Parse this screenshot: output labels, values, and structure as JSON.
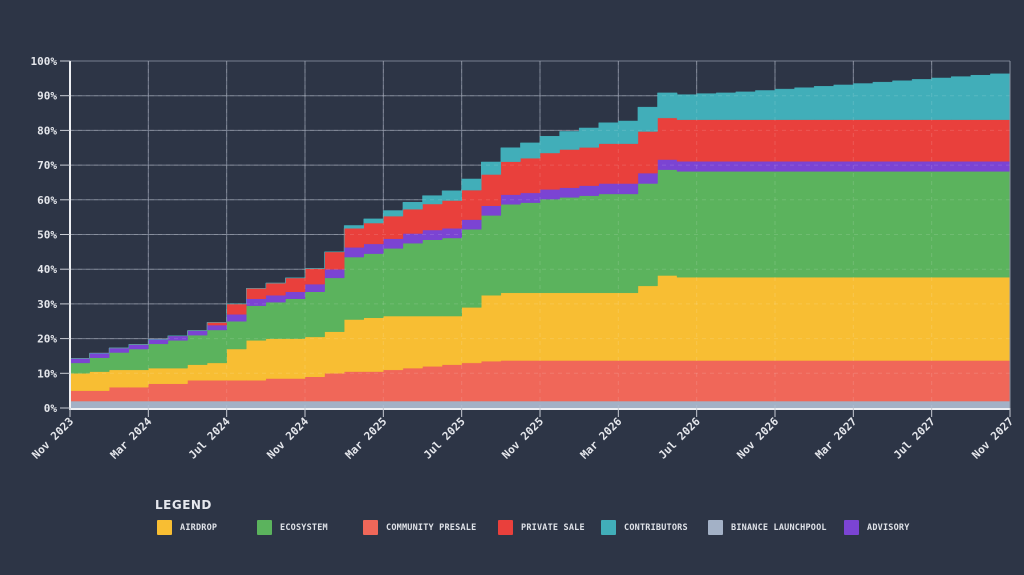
{
  "chart_data": {
    "type": "area",
    "stacked": true,
    "step": true,
    "title": "",
    "xlabel": "",
    "ylabel": "",
    "ylim": [
      0,
      100
    ],
    "y_ticks": [
      "0%",
      "10%",
      "20%",
      "30%",
      "40%",
      "50%",
      "60%",
      "70%",
      "80%",
      "90%",
      "100%"
    ],
    "x_ticks": [
      "Nov 2023",
      "Mar 2024",
      "Jul 2024",
      "Nov 2024",
      "Mar 2025",
      "Jul 2025",
      "Nov 2025",
      "Mar 2026",
      "Jul 2026",
      "Nov 2026",
      "Mar 2027",
      "Jul 2027",
      "Nov 2027"
    ],
    "x_start": "Nov 2023",
    "x_end": "Nov 2027",
    "grid": true,
    "legend_position": "bottom-left",
    "x_months": [
      0,
      1,
      2,
      3,
      4,
      5,
      6,
      7,
      8,
      9,
      10,
      11,
      12,
      13,
      14,
      15,
      16,
      17,
      18,
      19,
      20,
      21,
      22,
      23,
      24,
      25,
      26,
      27,
      28,
      29,
      30,
      31,
      32,
      33,
      34,
      35,
      36,
      37,
      38,
      39,
      40,
      41,
      42,
      43,
      44,
      45,
      46,
      47,
      48
    ],
    "series": [
      {
        "name": "Binance Launchpool",
        "color": "#a3b1c6",
        "values": [
          2,
          2,
          2,
          2,
          2,
          2,
          2,
          2,
          2,
          2,
          2,
          2,
          2,
          2,
          2,
          2,
          2,
          2,
          2,
          2,
          2,
          2,
          2,
          2,
          2,
          2,
          2,
          2,
          2,
          2,
          2,
          2,
          2,
          2,
          2,
          2,
          2,
          2,
          2,
          2,
          2,
          2,
          2,
          2,
          2,
          2,
          2,
          2,
          2
        ]
      },
      {
        "name": "Community Presale",
        "color": "#f06759",
        "values": [
          3,
          3,
          4,
          4,
          5,
          5,
          6,
          6,
          6,
          6,
          6.5,
          6.5,
          7,
          8,
          8.5,
          8.5,
          9,
          9.5,
          10,
          10.5,
          11,
          11.5,
          11.7,
          11.7,
          11.7,
          11.7,
          11.7,
          11.7,
          11.7,
          11.7,
          11.7,
          11.7,
          11.7,
          11.7,
          11.7,
          11.7,
          11.7,
          11.7,
          11.7,
          11.7,
          11.7,
          11.7,
          11.7,
          11.7,
          11.7,
          11.7,
          11.7,
          11.7,
          11.7
        ]
      },
      {
        "name": "Airdrop",
        "color": "#f8be33",
        "values": [
          5,
          5.5,
          5,
          5,
          4.5,
          4.5,
          4.5,
          5,
          9,
          11.5,
          11.5,
          11.5,
          11.5,
          12,
          15,
          15.5,
          15.5,
          15,
          14.5,
          14,
          16,
          19,
          19.5,
          19.5,
          19.5,
          19.5,
          19.5,
          19.5,
          19.5,
          21.5,
          24.5,
          24,
          24,
          24,
          24,
          24,
          24,
          24,
          24,
          24,
          24,
          24,
          24,
          24,
          24,
          24,
          24,
          24,
          24
        ]
      },
      {
        "name": "Ecosystem",
        "color": "#5bb35d",
        "values": [
          3,
          4,
          5,
          6,
          7,
          8,
          8.5,
          9.5,
          8,
          10,
          10.5,
          11.5,
          13,
          15.5,
          18,
          18.5,
          19.5,
          21,
          22,
          22.5,
          22.5,
          23,
          25.5,
          26,
          27,
          27.5,
          28,
          28.5,
          28.5,
          29.5,
          30.5,
          30.5,
          30.5,
          30.5,
          30.5,
          30.5,
          30.5,
          30.5,
          30.5,
          30.5,
          30.5,
          30.5,
          30.5,
          30.5,
          30.5,
          30.5,
          30.5,
          30.5,
          30.5
        ]
      },
      {
        "name": "Advisory",
        "color": "#7b44d3",
        "values": [
          1.3,
          1.3,
          1.3,
          1.3,
          1.3,
          1.3,
          1.3,
          1.4,
          2,
          2,
          2,
          2,
          2.2,
          2.5,
          2.8,
          2.8,
          2.8,
          2.8,
          2.8,
          2.8,
          2.8,
          2.8,
          2.8,
          2.8,
          2.8,
          2.8,
          2.9,
          3,
          3,
          3,
          2.9,
          2.9,
          2.9,
          2.9,
          2.9,
          2.9,
          2.9,
          2.9,
          2.9,
          2.9,
          2.9,
          2.9,
          2.9,
          2.9,
          2.9,
          2.9,
          2.9,
          2.9,
          2.9
        ]
      },
      {
        "name": "Private Sale",
        "color": "#e9403c",
        "values": [
          0,
          0,
          0,
          0,
          0,
          0,
          0,
          0.8,
          3,
          3,
          3.5,
          4,
          4.5,
          5,
          5.5,
          6,
          6.5,
          7,
          7.5,
          8,
          8.5,
          9,
          9.5,
          10,
          10.5,
          11,
          11,
          11.5,
          11.5,
          12,
          12,
          12,
          12,
          12,
          12,
          12,
          12,
          12,
          12,
          12,
          12,
          12,
          12,
          12,
          12,
          12,
          12,
          12,
          12
        ]
      },
      {
        "name": "Contributors",
        "color": "#41aeb9",
        "values": [
          0,
          0,
          0,
          0,
          0,
          0,
          0,
          0,
          0,
          0,
          0,
          0,
          0,
          0,
          0.8,
          1.2,
          1.6,
          2,
          2.4,
          2.8,
          3.2,
          3.6,
          4,
          4.4,
          4.8,
          5.2,
          5.6,
          6,
          6.5,
          7,
          7.2,
          7.2,
          7.5,
          7.7,
          8,
          8.4,
          8.8,
          9.2,
          9.6,
          10,
          10.4,
          10.8,
          11.2,
          11.6,
          12,
          12.4,
          12.8,
          13.2,
          17
        ]
      }
    ]
  },
  "legend": {
    "title": "LEGEND",
    "items": [
      {
        "label": "AIRDROP",
        "color": "#f8be33"
      },
      {
        "label": "ECOSYSTEM",
        "color": "#5bb35d"
      },
      {
        "label": "COMMUNITY PRESALE",
        "color": "#f06759"
      },
      {
        "label": "PRIVATE SALE",
        "color": "#e9403c"
      },
      {
        "label": "CONTRIBUTORS",
        "color": "#41aeb9"
      },
      {
        "label": "BINANCE LAUNCHPOOL",
        "color": "#a3b1c6"
      },
      {
        "label": "ADVISORY",
        "color": "#7b44d3"
      }
    ]
  }
}
